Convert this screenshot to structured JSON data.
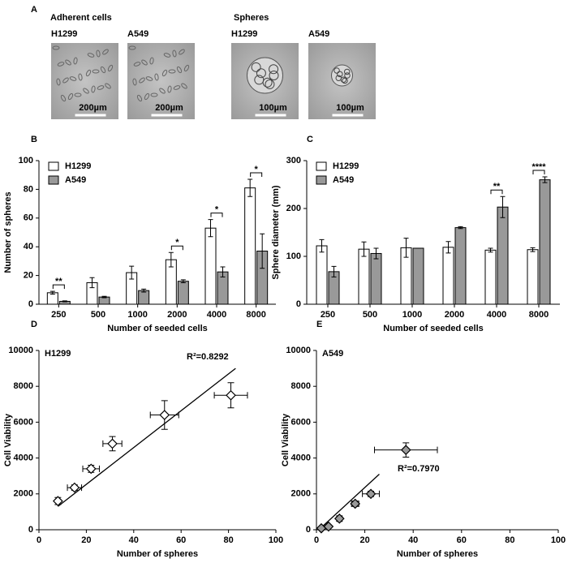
{
  "figure_a": {
    "label": "A",
    "groups": [
      {
        "title": "Adherent cells",
        "images": [
          {
            "label": "H1299",
            "scale_bar": "200µm"
          },
          {
            "label": "A549",
            "scale_bar": "200µm"
          }
        ]
      },
      {
        "title": "Spheres",
        "images": [
          {
            "label": "H1299",
            "scale_bar": "100µm"
          },
          {
            "label": "A549",
            "scale_bar": "100µm"
          }
        ]
      }
    ]
  },
  "chart_data": [
    {
      "type": "bar",
      "panel": "B",
      "categories": [
        "250",
        "500",
        "1000",
        "2000",
        "4000",
        "8000"
      ],
      "x_label": "Number of seeded cells",
      "y_label": "Number of spheres",
      "ylim": [
        0,
        100
      ],
      "yticks": [
        0,
        20,
        40,
        60,
        80,
        100
      ],
      "legend": "upper left",
      "series": [
        {
          "name": "H1299",
          "color": "#ffffff",
          "values": [
            8,
            15,
            22,
            31,
            53,
            81
          ],
          "errors": [
            1,
            3.5,
            4.5,
            5,
            6,
            6
          ]
        },
        {
          "name": "A549",
          "color": "#999999",
          "values": [
            2,
            5,
            9.5,
            16,
            22.5,
            37
          ],
          "errors": [
            0.3,
            0.5,
            1,
            1,
            3.5,
            12
          ]
        }
      ],
      "significance": [
        "**",
        null,
        null,
        "*",
        "*",
        "*"
      ]
    },
    {
      "type": "bar",
      "panel": "C",
      "categories": [
        "250",
        "500",
        "1000",
        "2000",
        "4000",
        "8000"
      ],
      "x_label": "Number of seeded cells",
      "y_label": "Sphere diameter (mm)",
      "ylim": [
        0,
        300
      ],
      "yticks": [
        0,
        100,
        200,
        300
      ],
      "legend": "upper left",
      "series": [
        {
          "name": "H1299",
          "color": "#ffffff",
          "values": [
            122,
            115,
            118,
            119,
            113,
            114
          ],
          "errors": [
            13,
            15,
            20,
            12,
            4,
            4
          ]
        },
        {
          "name": "A549",
          "color": "#999999",
          "values": [
            68,
            106,
            117,
            160,
            203,
            260
          ],
          "errors": [
            11,
            11,
            0,
            2,
            22,
            6
          ]
        }
      ],
      "significance": [
        null,
        null,
        null,
        null,
        "**",
        "****"
      ]
    },
    {
      "type": "scatter",
      "panel": "D",
      "label": "H1299",
      "x_label": "Number of spheres",
      "y_label": "Cell Viability",
      "xlim": [
        0,
        100
      ],
      "xticks": [
        0,
        20,
        40,
        60,
        80,
        100
      ],
      "ylim": [
        0,
        10000
      ],
      "yticks": [
        0,
        2000,
        4000,
        6000,
        8000,
        10000
      ],
      "series": [
        {
          "color": "#ffffff",
          "x": [
            8,
            15,
            22,
            31,
            53,
            81
          ],
          "values": [
            1600,
            2350,
            3400,
            4800,
            6400,
            7500
          ],
          "x_errors": [
            0.7,
            3,
            3.5,
            4,
            6,
            7
          ],
          "errors": [
            200,
            150,
            200,
            400,
            800,
            700
          ]
        }
      ],
      "fit": {
        "x": [
          8,
          83
        ],
        "y": [
          1300,
          9000
        ]
      },
      "annotation": "R²=0.8292"
    },
    {
      "type": "scatter",
      "panel": "E",
      "label": "A549",
      "x_label": "Number of spheres",
      "y_label": "Cell Viability",
      "xlim": [
        0,
        100
      ],
      "xticks": [
        0,
        20,
        40,
        60,
        80,
        100
      ],
      "ylim": [
        0,
        10000
      ],
      "yticks": [
        0,
        2000,
        4000,
        6000,
        8000,
        10000
      ],
      "series": [
        {
          "color": "#999999",
          "x": [
            2,
            5,
            9.5,
            16,
            22.5,
            37
          ],
          "values": [
            80,
            180,
            620,
            1450,
            2000,
            4450
          ],
          "x_errors": [
            0.3,
            0.5,
            1,
            1.5,
            3.5,
            13
          ],
          "errors": [
            50,
            60,
            150,
            150,
            150,
            400
          ]
        }
      ],
      "fit": {
        "x": [
          1,
          26
        ],
        "y": [
          0,
          3100
        ]
      },
      "annotation": "R²=0.7970"
    }
  ]
}
